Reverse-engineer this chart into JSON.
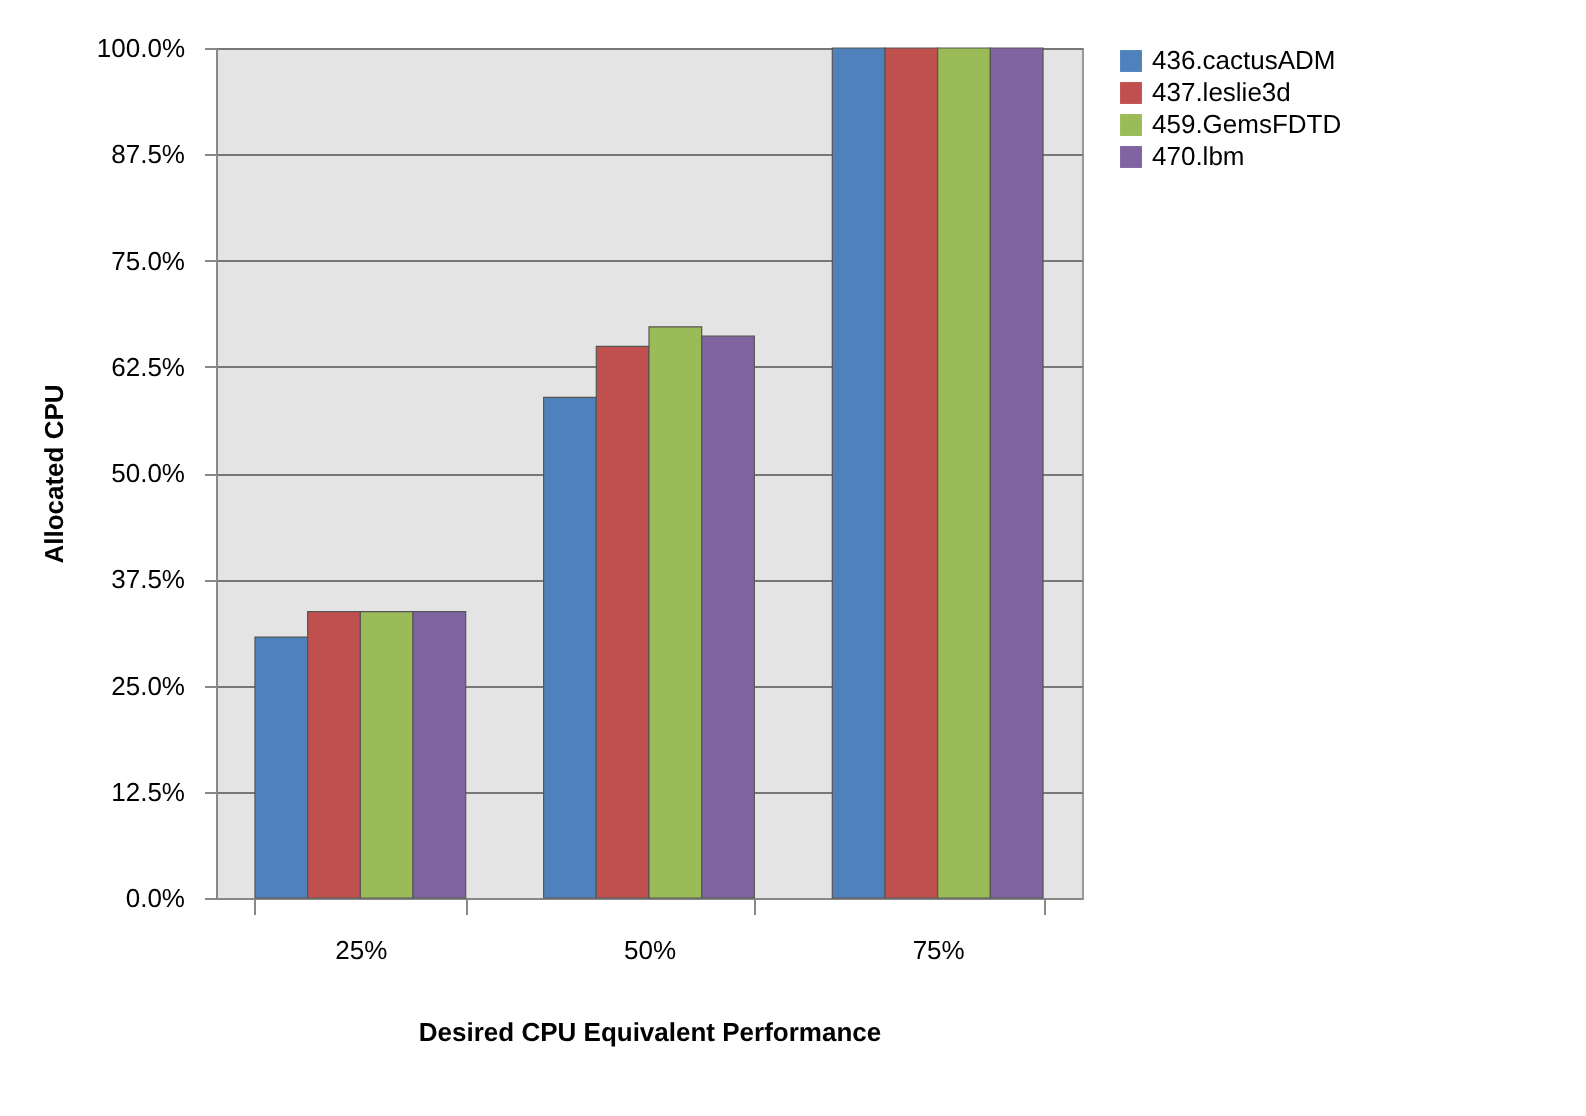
{
  "chart_data": {
    "type": "bar",
    "xlabel": "Desired CPU Equivalent Performance",
    "ylabel": "Allocated CPU",
    "categories": [
      "25%",
      "50%",
      "75%"
    ],
    "series": [
      {
        "name": "436.cactusADM",
        "color": "#4f81bd",
        "values": [
          30.7,
          58.9,
          100
        ]
      },
      {
        "name": "437.leslie3d",
        "color": "#c0504d",
        "values": [
          33.7,
          64.9,
          100
        ]
      },
      {
        "name": "459.GemsFDTD",
        "color": "#9bbb59",
        "values": [
          33.7,
          67.2,
          100
        ]
      },
      {
        "name": "470.lbm",
        "color": "#8064a2",
        "values": [
          33.7,
          66.1,
          100
        ]
      }
    ],
    "ylim": [
      0,
      100
    ],
    "yticks": [
      {
        "value": 0,
        "label": "0.0%"
      },
      {
        "value": 12.5,
        "label": "12.5%"
      },
      {
        "value": 25,
        "label": "25.0%"
      },
      {
        "value": 37.5,
        "label": "37.5%"
      },
      {
        "value": 50,
        "label": "50.0%"
      },
      {
        "value": 62.5,
        "label": "62.5%"
      },
      {
        "value": 75,
        "label": "75.0%"
      },
      {
        "value": 87.5,
        "label": "87.5%"
      },
      {
        "value": 100,
        "label": "100.0%"
      }
    ],
    "grid": "y",
    "legend": "right"
  }
}
